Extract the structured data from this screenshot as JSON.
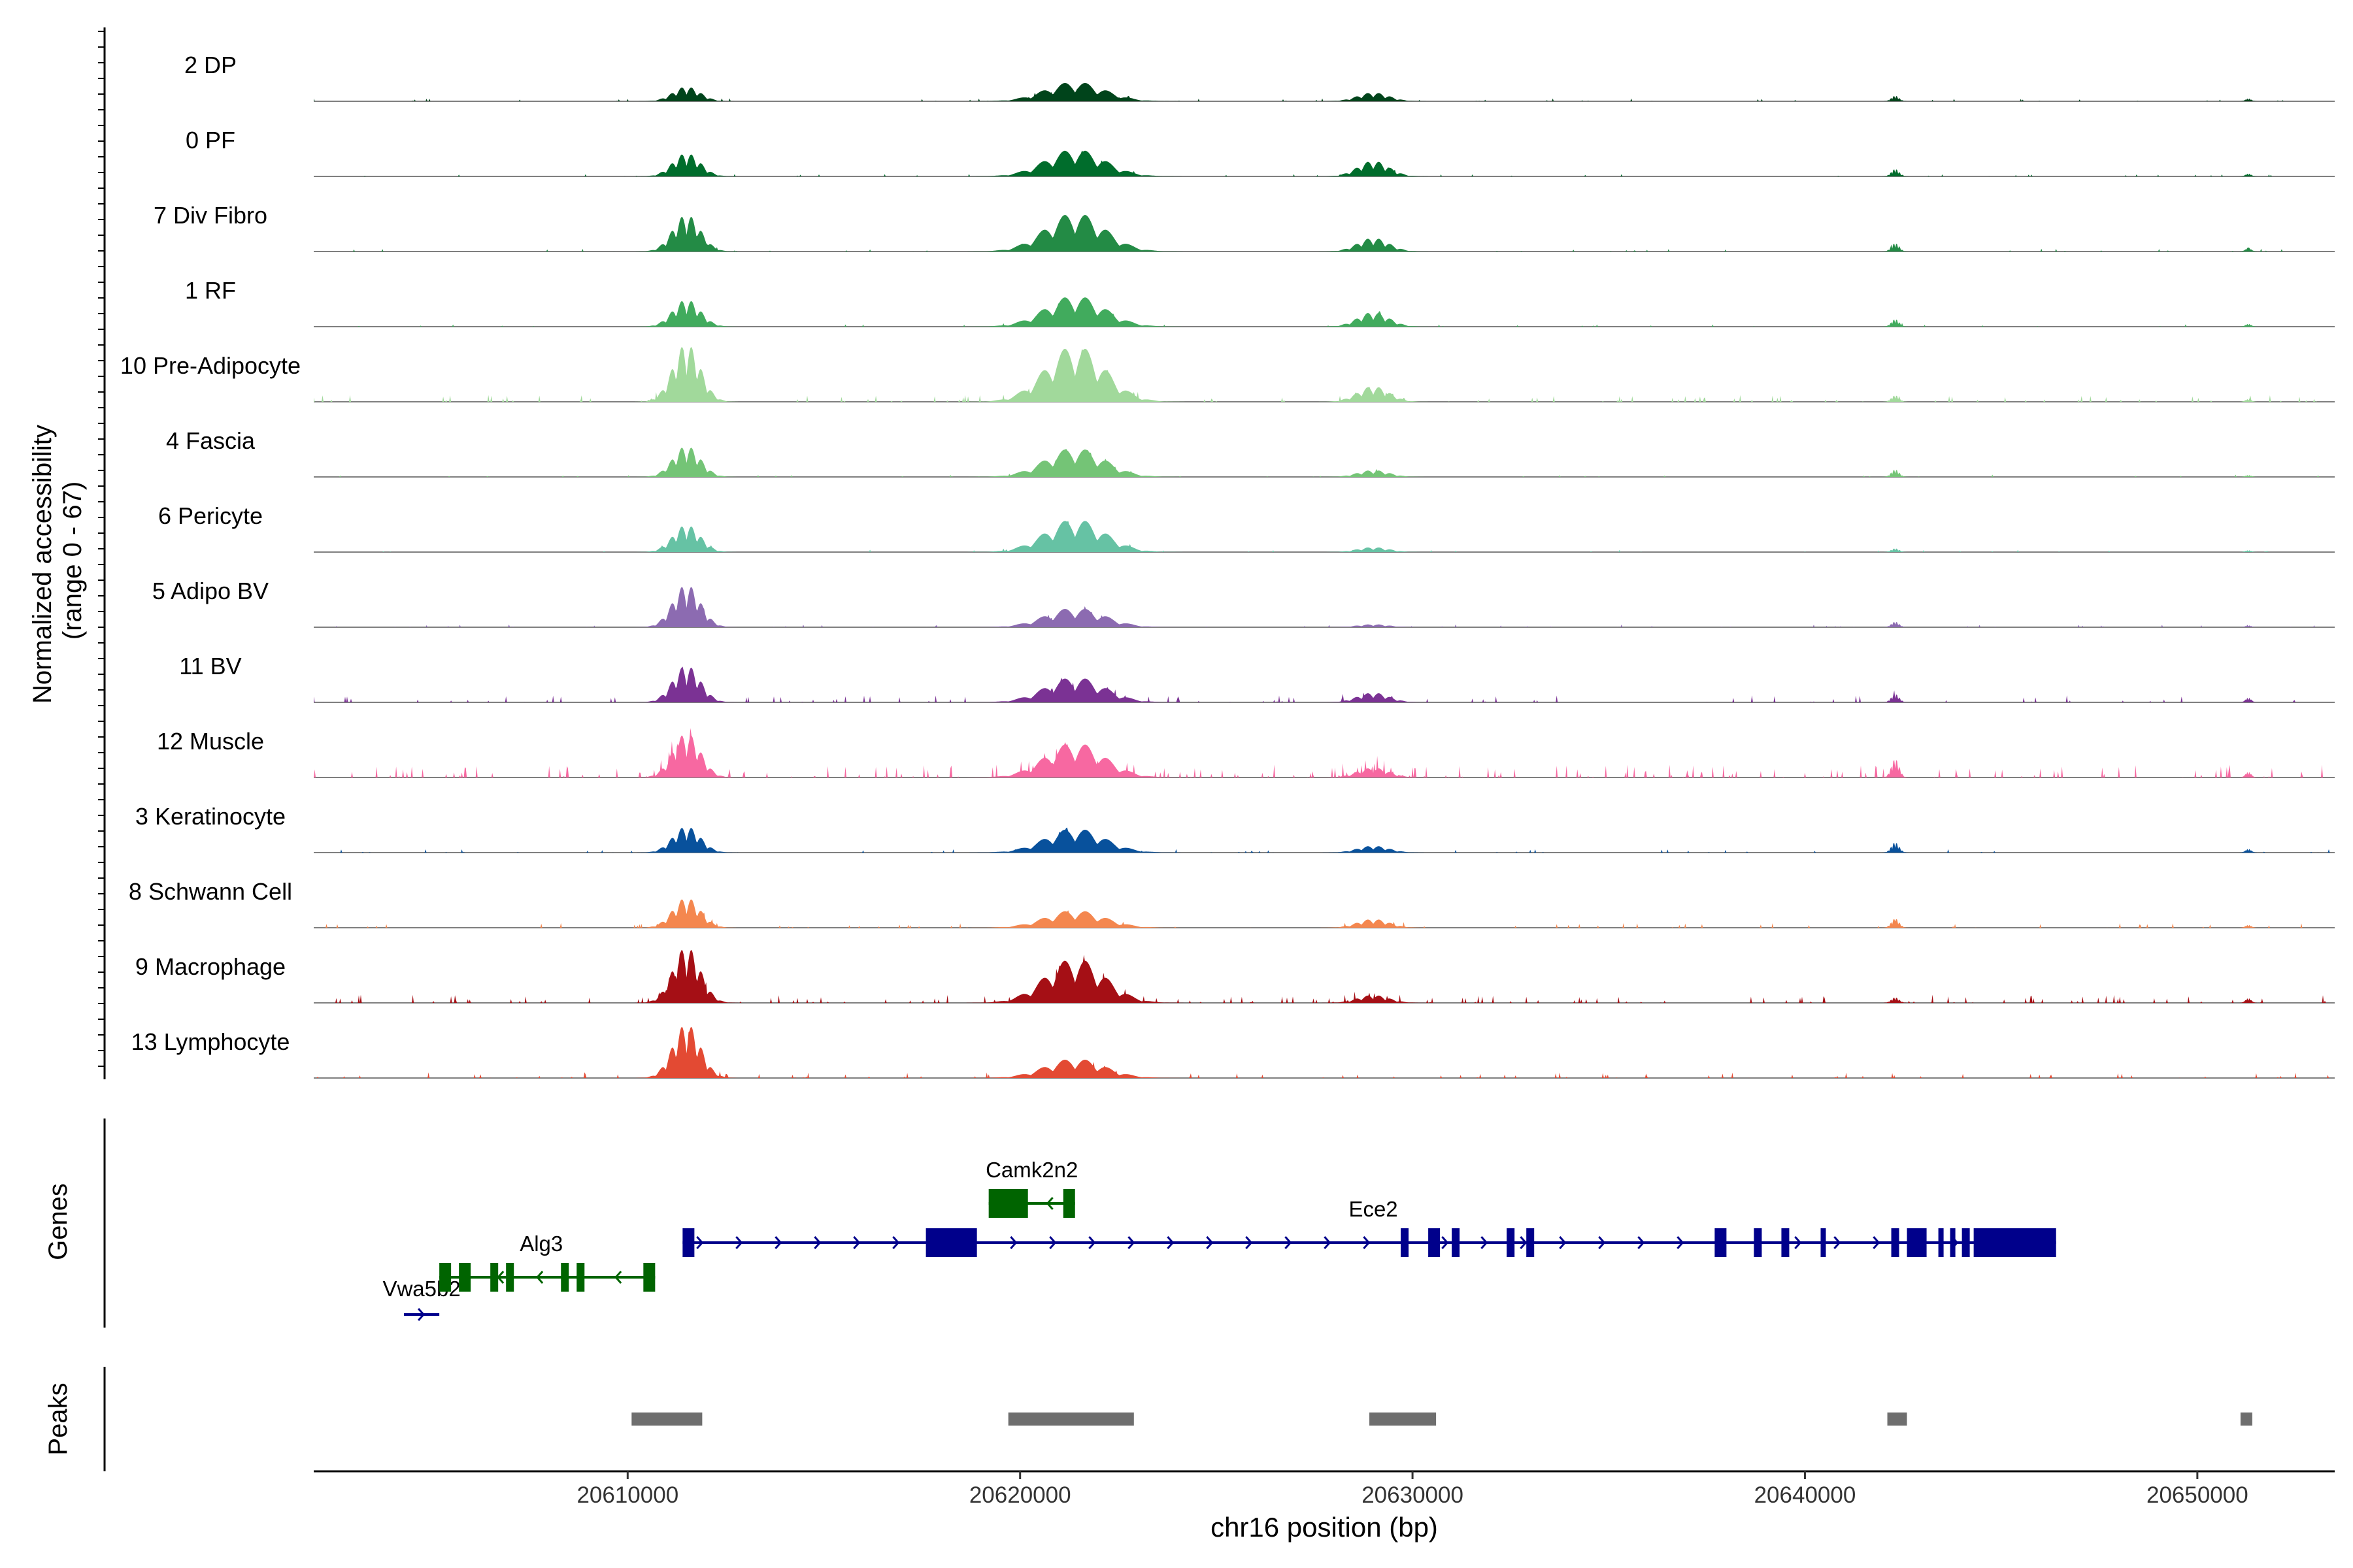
{
  "chart_data": {
    "type": "area",
    "title": "",
    "xlabel": "chr16 position (bp)",
    "ylabel_line1": "Normalized accessibility",
    "ylabel_line2": "(range 0 - 67)",
    "ylim": [
      0,
      67
    ],
    "xlim": [
      20602000,
      20653500
    ],
    "x_ticks": [
      20610000,
      20620000,
      20630000,
      20640000,
      20650000
    ],
    "x_tick_labels": [
      "20610000",
      "20620000",
      "20630000",
      "20640000",
      "20650000"
    ],
    "peak_centers": [
      20611500,
      20621400,
      20629000,
      20642300,
      20651300
    ],
    "tracks": [
      {
        "name": "2 DP",
        "color": "#00441b",
        "heights": [
          15,
          20,
          9,
          6,
          3
        ],
        "noise": 0.12
      },
      {
        "name": "0 PF",
        "color": "#006d2c",
        "heights": [
          24,
          28,
          16,
          8,
          3
        ],
        "noise": 0.1
      },
      {
        "name": "7 Div Fibro",
        "color": "#238b45",
        "heights": [
          38,
          40,
          14,
          9,
          4
        ],
        "noise": 0.12
      },
      {
        "name": "1 RF",
        "color": "#41ab5d",
        "heights": [
          28,
          32,
          15,
          8,
          3
        ],
        "noise": 0.1
      },
      {
        "name": "10 Pre-Adipocyte",
        "color": "#a1d99b",
        "heights": [
          60,
          58,
          16,
          7,
          3
        ],
        "noise": 0.3
      },
      {
        "name": "4 Fascia",
        "color": "#74c476",
        "heights": [
          32,
          30,
          7,
          8,
          2
        ],
        "noise": 0.1
      },
      {
        "name": "6 Pericyte",
        "color": "#66c2a4",
        "heights": [
          28,
          34,
          5,
          4,
          2
        ],
        "noise": 0.1
      },
      {
        "name": "5 Adipo BV",
        "color": "#8c6bb1",
        "heights": [
          44,
          20,
          3,
          6,
          2
        ],
        "noise": 0.12
      },
      {
        "name": "11 BV",
        "color": "#7b3294",
        "heights": [
          38,
          26,
          10,
          9,
          5
        ],
        "noise": 0.3
      },
      {
        "name": "12 Muscle",
        "color": "#f768a1",
        "heights": [
          46,
          36,
          10,
          20,
          6
        ],
        "noise": 0.55
      },
      {
        "name": "3 Keratinocyte",
        "color": "#08519c",
        "heights": [
          27,
          25,
          7,
          11,
          4
        ],
        "noise": 0.15
      },
      {
        "name": "8 Schwann Cell",
        "color": "#f4874f",
        "heights": [
          31,
          18,
          9,
          10,
          3
        ],
        "noise": 0.2
      },
      {
        "name": "9 Macrophage",
        "color": "#a50f15",
        "heights": [
          58,
          46,
          8,
          6,
          5
        ],
        "noise": 0.35
      },
      {
        "name": "13 Lymphocyte",
        "color": "#e34a33",
        "heights": [
          56,
          20,
          0,
          0,
          0
        ],
        "noise": 0.25
      }
    ],
    "genes_panel": {
      "title": "Genes",
      "genes": [
        {
          "name": "Vwa5b2",
          "strand": "+",
          "start": 20604300,
          "end": 20605200,
          "row": 3,
          "color": "#00008b"
        },
        {
          "name": "Alg3",
          "strand": "-",
          "start": 20605200,
          "end": 20610700,
          "row": 2,
          "color": "#006400"
        },
        {
          "name": "Ece2",
          "strand": "+",
          "start": 20611400,
          "end": 20646400,
          "row": 1,
          "color": "#00008b"
        },
        {
          "name": "Camk2n2",
          "strand": "-",
          "start": 20619200,
          "end": 20621400,
          "row": 0,
          "color": "#006400"
        }
      ]
    },
    "peaks_panel": {
      "title": "Peaks",
      "color": "#6e6e6e",
      "peaks": [
        {
          "start": 20610100,
          "end": 20611900
        },
        {
          "start": 20619700,
          "end": 20622900
        },
        {
          "start": 20628900,
          "end": 20630600
        },
        {
          "start": 20642100,
          "end": 20642600
        },
        {
          "start": 20651100,
          "end": 20651400
        }
      ]
    }
  }
}
